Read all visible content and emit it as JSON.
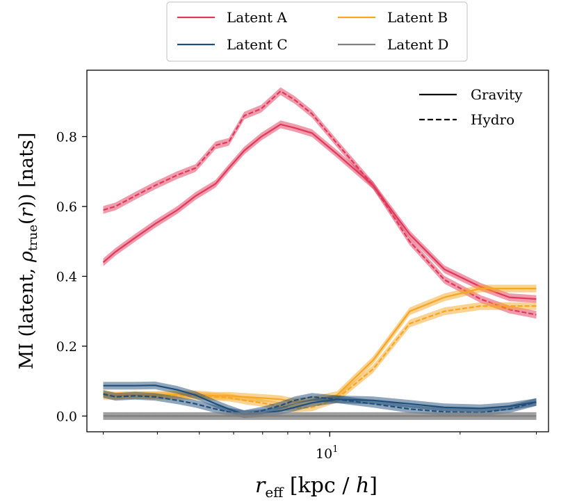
{
  "chart_data": {
    "type": "line",
    "title": "",
    "xlabel": "r_eff [kpc / h]",
    "ylabel": "MI (latent, ρ_true(r)) [nats]",
    "xscale": "log",
    "xlim": [
      2.75,
      32
    ],
    "ylim": [
      -0.045,
      0.99
    ],
    "yticks": [
      0.0,
      0.2,
      0.4,
      0.6,
      0.8
    ],
    "ytick_labels": [
      "0.0",
      "0.2",
      "0.4",
      "0.6",
      "0.8"
    ],
    "xtick_major": [
      10
    ],
    "xtick_major_label_base": "10",
    "xtick_major_label_exp": "1",
    "xtick_minor": [
      3,
      4,
      5,
      6,
      7,
      8,
      9,
      20,
      30
    ],
    "legend_top": [
      {
        "label": "Latent A",
        "color": "#e0385a"
      },
      {
        "label": "Latent B",
        "color": "#f5a623"
      },
      {
        "label": "Latent C",
        "color": "#1f4e79"
      },
      {
        "label": "Latent D",
        "color": "#808080"
      }
    ],
    "legend_style": [
      {
        "label": "Gravity",
        "dash": "solid"
      },
      {
        "label": "Hydro",
        "dash": "dashed"
      }
    ],
    "band_halfwidth": 0.011,
    "x": [
      3.0,
      3.2,
      3.55,
      3.95,
      4.45,
      4.9,
      5.45,
      5.85,
      6.35,
      6.95,
      7.7,
      8.3,
      9.1,
      10.4,
      12.6,
      15.3,
      18.4,
      22.3,
      26.0,
      30.0
    ],
    "series": [
      {
        "name": "Latent A",
        "style": "Gravity",
        "color": "#e0385a",
        "values": [
          0.44,
          0.47,
          0.51,
          0.55,
          0.59,
          0.63,
          0.665,
          0.71,
          0.76,
          0.8,
          0.835,
          0.825,
          0.81,
          0.75,
          0.66,
          0.52,
          0.42,
          0.37,
          0.34,
          0.335
        ]
      },
      {
        "name": "Latent A",
        "style": "Hydro",
        "color": "#e0385a",
        "values": [
          0.59,
          0.6,
          0.63,
          0.66,
          0.69,
          0.71,
          0.775,
          0.785,
          0.86,
          0.88,
          0.93,
          0.905,
          0.865,
          0.78,
          0.66,
          0.5,
          0.39,
          0.335,
          0.305,
          0.29
        ]
      },
      {
        "name": "Latent B",
        "style": "Gravity",
        "color": "#f5a623",
        "values": [
          0.058,
          0.058,
          0.06,
          0.06,
          0.062,
          0.062,
          0.058,
          0.058,
          0.055,
          0.052,
          0.048,
          0.04,
          0.045,
          0.06,
          0.16,
          0.3,
          0.34,
          0.365,
          0.365,
          0.365
        ]
      },
      {
        "name": "Latent B",
        "style": "Hydro",
        "color": "#f5a623",
        "values": [
          0.064,
          0.058,
          0.06,
          0.058,
          0.058,
          0.058,
          0.055,
          0.053,
          0.045,
          0.038,
          0.028,
          0.022,
          0.025,
          0.05,
          0.135,
          0.265,
          0.3,
          0.315,
          0.315,
          0.315
        ]
      },
      {
        "name": "Latent C",
        "style": "Gravity",
        "color": "#1f4e79",
        "values": [
          0.087,
          0.087,
          0.087,
          0.088,
          0.075,
          0.06,
          0.035,
          0.02,
          0.005,
          0.008,
          0.015,
          0.025,
          0.038,
          0.048,
          0.045,
          0.035,
          0.025,
          0.022,
          0.028,
          0.04
        ]
      },
      {
        "name": "Latent C",
        "style": "Hydro",
        "color": "#1f4e79",
        "values": [
          0.063,
          0.055,
          0.058,
          0.055,
          0.045,
          0.035,
          0.02,
          0.012,
          0.006,
          0.015,
          0.03,
          0.045,
          0.055,
          0.048,
          0.035,
          0.02,
          0.012,
          0.01,
          0.02,
          0.04
        ]
      },
      {
        "name": "Latent D",
        "style": "Gravity",
        "color": "#808080",
        "values": [
          0.0,
          0.0,
          0.0,
          0.0,
          0.0,
          0.0,
          0.0,
          0.0,
          0.0,
          0.0,
          0.0,
          0.0,
          0.0,
          0.0,
          0.0,
          0.0,
          0.0,
          0.0,
          0.0,
          0.0
        ]
      },
      {
        "name": "Latent D",
        "style": "Hydro",
        "color": "#808080",
        "values": [
          0.0,
          0.0,
          0.0,
          0.0,
          0.0,
          0.0,
          0.0,
          0.0,
          0.0,
          0.0,
          0.0,
          0.0,
          0.0,
          0.0,
          0.0,
          0.0,
          0.0,
          0.0,
          0.0,
          0.0
        ]
      }
    ]
  }
}
